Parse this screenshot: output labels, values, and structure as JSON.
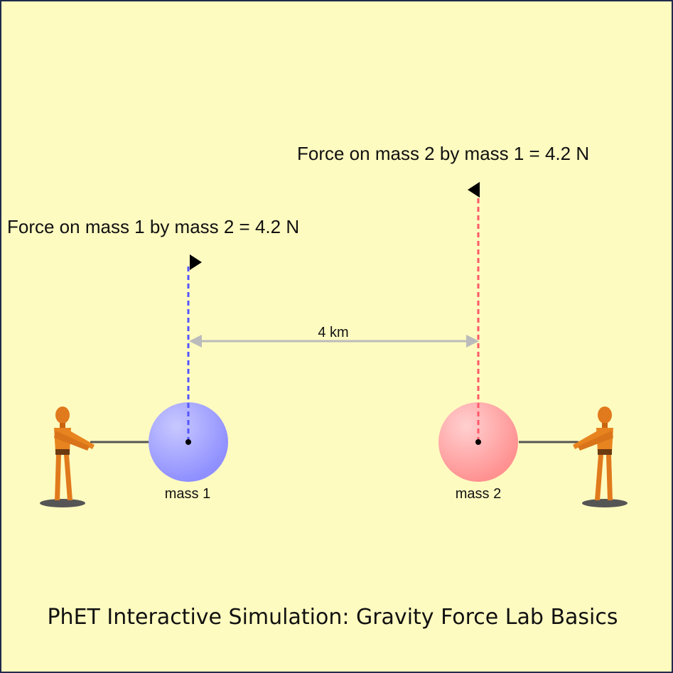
{
  "simulation": {
    "force_label_1": "Force on mass 1 by mass 2 = 4.2 N",
    "force_label_2": "Force on mass 2 by mass 1 = 4.2 N",
    "distance_label": "4 km",
    "mass_1_label": "mass 1",
    "mass_2_label": "mass 2"
  },
  "caption": "PhET Interactive Simulation: Gravity Force Lab Basics"
}
